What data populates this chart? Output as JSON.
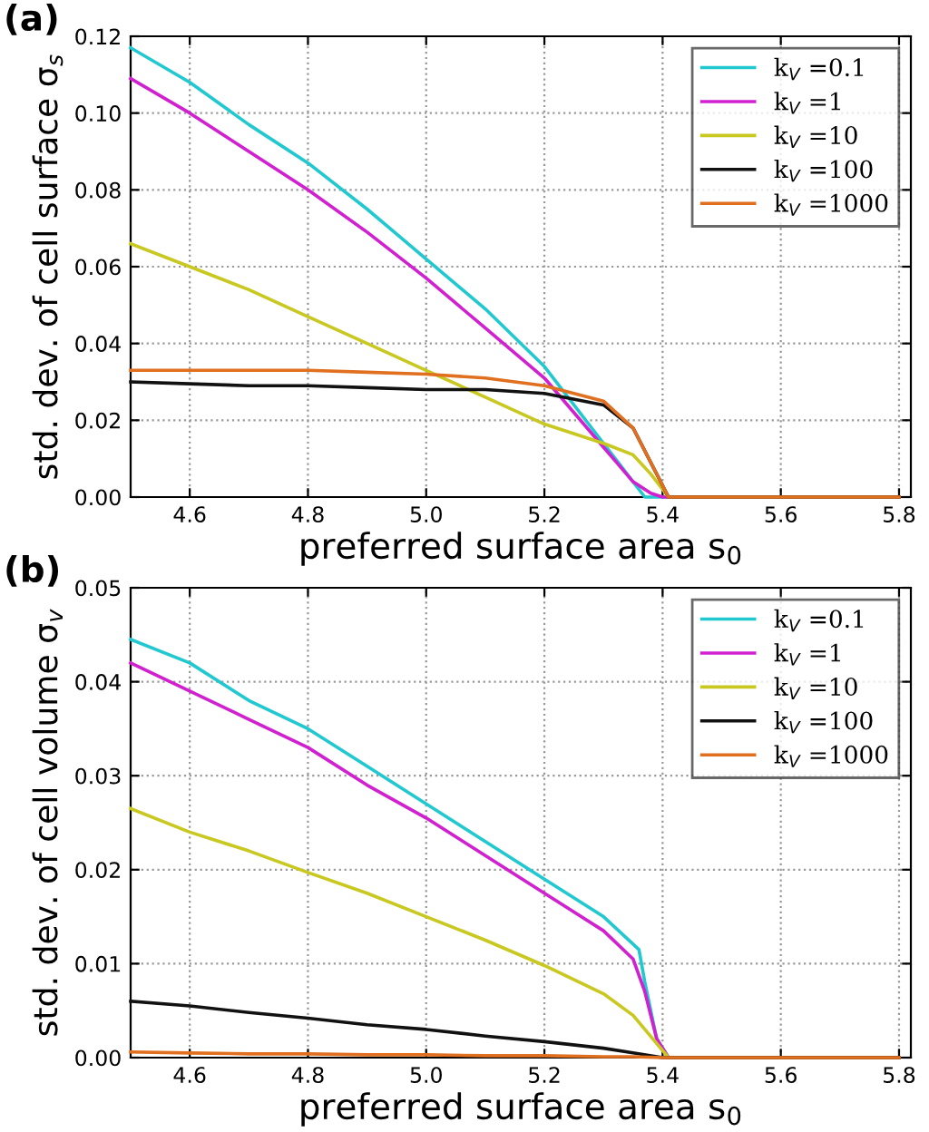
{
  "chart_data": [
    {
      "type": "line",
      "xlabel": "preferred surface area s$_{0}$",
      "ylabel": "std. dev. of cell surface σ$_{s}$",
      "annotations": [
        "(a)"
      ],
      "xlim": [
        4.5,
        5.82
      ],
      "xticks": [
        4.6,
        4.8,
        {
          "value": 5,
          "label": "5.0"
        },
        5.2,
        5.4,
        5.6,
        5.8
      ],
      "ylim": [
        0,
        0.12
      ],
      "yticks": [
        {
          "value": 0,
          "label": "0.00"
        },
        {
          "value": 0.02,
          "label": "0.02"
        },
        {
          "value": 0.04,
          "label": "0.04"
        },
        {
          "value": 0.06,
          "label": "0.06"
        },
        {
          "value": 0.08,
          "label": "0.08"
        },
        {
          "value": 0.1,
          "label": "0.10"
        },
        {
          "value": 0.12,
          "label": "0.12"
        }
      ],
      "grid": true,
      "legend": "top right",
      "series": [
        {
          "name": "k$_{V}$ =0.1",
          "color": "#22c8d0",
          "x": [
            4.5,
            4.6,
            4.7,
            4.8,
            4.9,
            5.0,
            5.1,
            5.2,
            5.3,
            5.35,
            5.37,
            5.8
          ],
          "values": [
            0.117,
            0.108,
            0.097,
            0.087,
            0.075,
            0.062,
            0.049,
            0.034,
            0.014,
            0.004,
            0,
            0
          ]
        },
        {
          "name": "k$_{V}$ =1",
          "color": "#d020d0",
          "x": [
            4.5,
            4.6,
            4.7,
            4.8,
            4.9,
            5.0,
            5.1,
            5.2,
            5.3,
            5.35,
            5.38,
            5.4,
            5.8
          ],
          "values": [
            0.109,
            0.1,
            0.09,
            0.08,
            0.069,
            0.057,
            0.044,
            0.031,
            0.013,
            0.004,
            0.001,
            0,
            0
          ]
        },
        {
          "name": "k$_{V}$ =10",
          "color": "#c8c820",
          "x": [
            4.5,
            4.6,
            4.7,
            4.8,
            4.9,
            5.0,
            5.1,
            5.2,
            5.3,
            5.35,
            5.38,
            5.41,
            5.8
          ],
          "values": [
            0.066,
            0.06,
            0.054,
            0.047,
            0.04,
            0.033,
            0.026,
            0.019,
            0.014,
            0.011,
            0.006,
            0,
            0
          ]
        },
        {
          "name": "k$_{V}$ =100",
          "color": "#111111",
          "x": [
            4.5,
            4.6,
            4.7,
            4.8,
            4.9,
            5.0,
            5.1,
            5.2,
            5.3,
            5.35,
            5.41,
            5.8
          ],
          "values": [
            0.03,
            0.0295,
            0.029,
            0.029,
            0.0285,
            0.028,
            0.028,
            0.027,
            0.024,
            0.018,
            0,
            0
          ]
        },
        {
          "name": "k$_{V}$ =1000",
          "color": "#e07020",
          "x": [
            4.5,
            4.6,
            4.7,
            4.8,
            4.9,
            5.0,
            5.1,
            5.2,
            5.3,
            5.35,
            5.41,
            5.8
          ],
          "values": [
            0.033,
            0.033,
            0.033,
            0.033,
            0.0325,
            0.032,
            0.031,
            0.029,
            0.025,
            0.018,
            0,
            0
          ]
        }
      ]
    },
    {
      "type": "line",
      "xlabel": "preferred surface area s$_{0}$",
      "ylabel": "std. dev. of cell volume σ$_{v}$",
      "annotations": [
        "(b)"
      ],
      "xlim": [
        4.5,
        5.82
      ],
      "xticks": [
        4.6,
        4.8,
        {
          "value": 5,
          "label": "5.0"
        },
        5.2,
        5.4,
        5.6,
        5.8
      ],
      "ylim": [
        0,
        0.05
      ],
      "yticks": [
        {
          "value": 0,
          "label": "0.00"
        },
        {
          "value": 0.01,
          "label": "0.01"
        },
        {
          "value": 0.02,
          "label": "0.02"
        },
        {
          "value": 0.03,
          "label": "0.03"
        },
        {
          "value": 0.04,
          "label": "0.04"
        },
        {
          "value": 0.05,
          "label": "0.05"
        }
      ],
      "grid": true,
      "legend": "top right",
      "series": [
        {
          "name": "k$_{V}$ =0.1",
          "color": "#22c8d0",
          "x": [
            4.5,
            4.6,
            4.7,
            4.8,
            4.9,
            5.0,
            5.1,
            5.2,
            5.3,
            5.36,
            5.37,
            5.39,
            5.41,
            5.8
          ],
          "values": [
            0.0445,
            0.042,
            0.038,
            0.035,
            0.031,
            0.027,
            0.023,
            0.019,
            0.015,
            0.0115,
            0.008,
            0.002,
            0,
            0
          ]
        },
        {
          "name": "k$_{V}$ =1",
          "color": "#d020d0",
          "x": [
            4.5,
            4.6,
            4.7,
            4.8,
            4.9,
            5.0,
            5.1,
            5.2,
            5.3,
            5.35,
            5.37,
            5.39,
            5.41,
            5.8
          ],
          "values": [
            0.042,
            0.039,
            0.036,
            0.033,
            0.029,
            0.0255,
            0.0215,
            0.0175,
            0.0135,
            0.0105,
            0.007,
            0.002,
            0,
            0
          ]
        },
        {
          "name": "k$_{V}$ =10",
          "color": "#c8c820",
          "x": [
            4.5,
            4.6,
            4.7,
            4.8,
            4.9,
            5.0,
            5.1,
            5.2,
            5.3,
            5.35,
            5.37,
            5.41,
            5.8
          ],
          "values": [
            0.0265,
            0.024,
            0.022,
            0.0197,
            0.0175,
            0.015,
            0.0125,
            0.0098,
            0.0068,
            0.0045,
            0.003,
            0,
            0
          ]
        },
        {
          "name": "k$_{V}$ =100",
          "color": "#111111",
          "x": [
            4.5,
            4.6,
            4.7,
            4.8,
            4.9,
            5.0,
            5.1,
            5.2,
            5.3,
            5.35,
            5.4,
            5.8
          ],
          "values": [
            0.006,
            0.0055,
            0.0048,
            0.0042,
            0.0035,
            0.003,
            0.0023,
            0.0017,
            0.001,
            0.0005,
            0,
            0
          ]
        },
        {
          "name": "k$_{V}$ =1000",
          "color": "#e07020",
          "x": [
            4.5,
            4.6,
            4.7,
            4.8,
            4.9,
            5.0,
            5.1,
            5.2,
            5.3,
            5.35,
            5.4,
            5.8
          ],
          "values": [
            0.0006,
            0.0005,
            0.0004,
            0.0004,
            0.0003,
            0.0003,
            0.0002,
            0.0002,
            0.0001,
            0.0001,
            0,
            0
          ]
        }
      ]
    }
  ]
}
